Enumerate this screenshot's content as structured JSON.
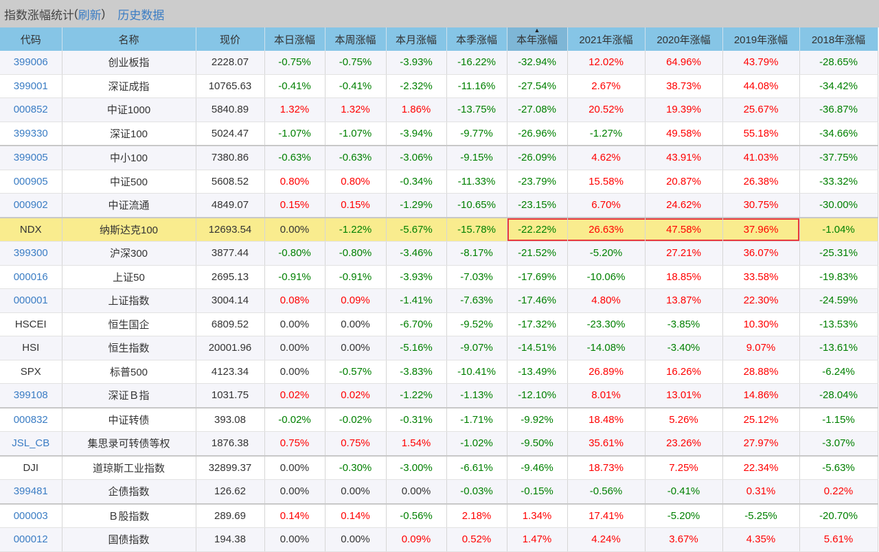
{
  "header": {
    "title": "指数涨幅统计",
    "refresh_open": "(",
    "refresh_label": "刷新",
    "refresh_close": ")",
    "history_label": "历史数据"
  },
  "columns": [
    "代码",
    "名称",
    "现价",
    "本日涨幅",
    "本周涨幅",
    "本月涨幅",
    "本季涨幅",
    "本年涨幅",
    "2021年涨幅",
    "2020年涨幅",
    "2019年涨幅",
    "2018年涨幅"
  ],
  "sorted_column": "本年涨幅",
  "sort_indicator": "▲",
  "colors": {
    "positive": "#ff0000",
    "negative": "#008000",
    "link": "#3b7dc4",
    "header_bg": "#86c5e6",
    "highlight_bg": "#f9ec8e",
    "highlight_box": "#e8393d"
  },
  "rows": [
    {
      "code": "399006",
      "link": true,
      "name": "创业板指",
      "price": "2228.07",
      "vals": [
        "-0.75%",
        "-0.75%",
        "-3.93%",
        "-16.22%",
        "-32.94%",
        "12.02%",
        "64.96%",
        "43.79%",
        "-28.65%"
      ]
    },
    {
      "code": "399001",
      "link": true,
      "name": "深证成指",
      "price": "10765.63",
      "vals": [
        "-0.41%",
        "-0.41%",
        "-2.32%",
        "-11.16%",
        "-27.54%",
        "2.67%",
        "38.73%",
        "44.08%",
        "-34.42%"
      ]
    },
    {
      "code": "000852",
      "link": true,
      "name": "中证1000",
      "price": "5840.89",
      "vals": [
        "1.32%",
        "1.32%",
        "1.86%",
        "-13.75%",
        "-27.08%",
        "20.52%",
        "19.39%",
        "25.67%",
        "-36.87%"
      ]
    },
    {
      "code": "399330",
      "link": true,
      "name": "深证100",
      "price": "5024.47",
      "group_end": true,
      "vals": [
        "-1.07%",
        "-1.07%",
        "-3.94%",
        "-9.77%",
        "-26.96%",
        "-1.27%",
        "49.58%",
        "55.18%",
        "-34.66%"
      ]
    },
    {
      "code": "399005",
      "link": true,
      "name": "中小100",
      "price": "7380.86",
      "vals": [
        "-0.63%",
        "-0.63%",
        "-3.06%",
        "-9.15%",
        "-26.09%",
        "4.62%",
        "43.91%",
        "41.03%",
        "-37.75%"
      ]
    },
    {
      "code": "000905",
      "link": true,
      "name": "中证500",
      "price": "5608.52",
      "vals": [
        "0.80%",
        "0.80%",
        "-0.34%",
        "-11.33%",
        "-23.79%",
        "15.58%",
        "20.87%",
        "26.38%",
        "-33.32%"
      ]
    },
    {
      "code": "000902",
      "link": true,
      "name": "中证流通",
      "price": "4849.07",
      "group_end": true,
      "vals": [
        "0.15%",
        "0.15%",
        "-1.29%",
        "-10.65%",
        "-23.15%",
        "6.70%",
        "24.62%",
        "30.75%",
        "-30.00%"
      ]
    },
    {
      "code": "NDX",
      "link": false,
      "name": "纳斯达克100",
      "price": "12693.54",
      "highlight": true,
      "vals": [
        "0.00%",
        "-1.22%",
        "-5.67%",
        "-15.78%",
        "-22.22%",
        "26.63%",
        "47.58%",
        "37.96%",
        "-1.04%"
      ]
    },
    {
      "code": "399300",
      "link": true,
      "name": "沪深300",
      "price": "3877.44",
      "vals": [
        "-0.80%",
        "-0.80%",
        "-3.46%",
        "-8.17%",
        "-21.52%",
        "-5.20%",
        "27.21%",
        "36.07%",
        "-25.31%"
      ]
    },
    {
      "code": "000016",
      "link": true,
      "name": "上证50",
      "price": "2695.13",
      "vals": [
        "-0.91%",
        "-0.91%",
        "-3.93%",
        "-7.03%",
        "-17.69%",
        "-10.06%",
        "18.85%",
        "33.58%",
        "-19.83%"
      ]
    },
    {
      "code": "000001",
      "link": true,
      "name": "上证指数",
      "price": "3004.14",
      "vals": [
        "0.08%",
        "0.09%",
        "-1.41%",
        "-7.63%",
        "-17.46%",
        "4.80%",
        "13.87%",
        "22.30%",
        "-24.59%"
      ]
    },
    {
      "code": "HSCEI",
      "link": false,
      "name": "恒生国企",
      "price": "6809.52",
      "vals": [
        "0.00%",
        "0.00%",
        "-6.70%",
        "-9.52%",
        "-17.32%",
        "-23.30%",
        "-3.85%",
        "10.30%",
        "-13.53%"
      ]
    },
    {
      "code": "HSI",
      "link": false,
      "name": "恒生指数",
      "price": "20001.96",
      "vals": [
        "0.00%",
        "0.00%",
        "-5.16%",
        "-9.07%",
        "-14.51%",
        "-14.08%",
        "-3.40%",
        "9.07%",
        "-13.61%"
      ]
    },
    {
      "code": "SPX",
      "link": false,
      "name": "标普500",
      "price": "4123.34",
      "vals": [
        "0.00%",
        "-0.57%",
        "-3.83%",
        "-10.41%",
        "-13.49%",
        "26.89%",
        "16.26%",
        "28.88%",
        "-6.24%"
      ]
    },
    {
      "code": "399108",
      "link": true,
      "name": "深证Ｂ指",
      "price": "1031.75",
      "group_end": true,
      "vals": [
        "0.02%",
        "0.02%",
        "-1.22%",
        "-1.13%",
        "-12.10%",
        "8.01%",
        "13.01%",
        "14.86%",
        "-28.04%"
      ]
    },
    {
      "code": "000832",
      "link": true,
      "name": "中证转债",
      "price": "393.08",
      "vals": [
        "-0.02%",
        "-0.02%",
        "-0.31%",
        "-1.71%",
        "-9.92%",
        "18.48%",
        "5.26%",
        "25.12%",
        "-1.15%"
      ]
    },
    {
      "code": "JSL_CB",
      "link": true,
      "name": "集思录可转债等权",
      "price": "1876.38",
      "group_end": true,
      "vals": [
        "0.75%",
        "0.75%",
        "1.54%",
        "-1.02%",
        "-9.50%",
        "35.61%",
        "23.26%",
        "27.97%",
        "-3.07%"
      ]
    },
    {
      "code": "DJI",
      "link": false,
      "name": "道琼斯工业指数",
      "price": "32899.37",
      "vals": [
        "0.00%",
        "-0.30%",
        "-3.00%",
        "-6.61%",
        "-9.46%",
        "18.73%",
        "7.25%",
        "22.34%",
        "-5.63%"
      ]
    },
    {
      "code": "399481",
      "link": true,
      "name": "企债指数",
      "price": "126.62",
      "group_end": true,
      "vals": [
        "0.00%",
        "0.00%",
        "0.00%",
        "-0.03%",
        "-0.15%",
        "-0.56%",
        "-0.41%",
        "0.31%",
        "0.22%"
      ]
    },
    {
      "code": "000003",
      "link": true,
      "name": "Ｂ股指数",
      "price": "289.69",
      "vals": [
        "0.14%",
        "0.14%",
        "-0.56%",
        "2.18%",
        "1.34%",
        "17.41%",
        "-5.20%",
        "-5.25%",
        "-20.70%"
      ]
    },
    {
      "code": "000012",
      "link": true,
      "name": "国债指数",
      "price": "194.38",
      "vals": [
        "0.00%",
        "0.00%",
        "0.09%",
        "0.52%",
        "1.47%",
        "4.24%",
        "3.67%",
        "4.35%",
        "5.61%"
      ]
    }
  ]
}
